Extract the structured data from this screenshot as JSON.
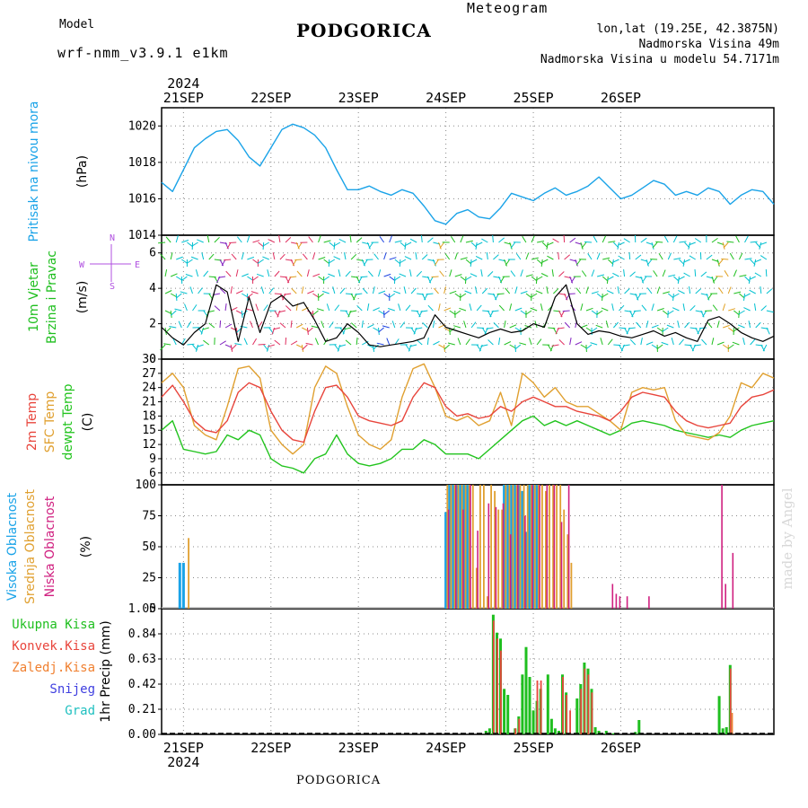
{
  "header": {
    "model_label": "Model",
    "model_name": "wrf-nmm_v3.9.1 e1km",
    "title": "PODGORICA",
    "subtitle": "Meteogram",
    "coords": "lon,lat (19.25E, 42.3875N)",
    "elevation": "Nadmorska Visina 49m",
    "model_elevation": "Nadmorska Visina u modelu 54.7171m",
    "footer": "PODGORICA",
    "watermark": "made by Angel"
  },
  "colors": {
    "pressure": "#1aa3e8",
    "temp2m": "#e8453c",
    "sfc": "#e0a030",
    "dewpt": "#22c41e",
    "green_label": "#1fbf1f",
    "purple": "#b050e0",
    "high_cloud": "#1aa3e8",
    "mid_cloud": "#e0a030",
    "low_cloud": "#d02080",
    "precip_total": "#1fbf1f",
    "precip_conv": "#e8453c",
    "precip_large": "#f08030",
    "snow": "#4040e0",
    "hail": "#20c0c0"
  },
  "axes": {
    "top_year": "2024",
    "bottom_year": "2024",
    "days": [
      "21SEP",
      "22SEP",
      "23SEP",
      "24SEP",
      "25SEP",
      "26SEP"
    ]
  },
  "chart_data": [
    {
      "type": "line",
      "panel": "pressure",
      "ylabel": [
        "Pritisak na nivou mora",
        "(hPa)"
      ],
      "ylim": [
        1014,
        1021
      ],
      "yticks": [
        1014,
        1016,
        1018,
        1020
      ],
      "x_unit": "hours from 21SEP 00UTC",
      "grid": true,
      "series": [
        {
          "x": [
            -6,
            -3,
            0,
            3,
            6,
            9,
            12,
            15,
            18,
            21,
            24,
            27,
            30,
            33,
            36,
            39,
            42,
            45,
            48,
            51,
            54,
            57,
            60,
            63,
            66,
            69,
            72,
            75,
            78,
            81,
            84,
            87,
            90,
            93,
            96,
            99,
            102,
            105,
            108,
            111,
            114,
            117,
            120,
            123,
            126,
            129,
            132,
            135,
            138,
            141,
            144,
            147,
            150,
            153,
            156,
            159,
            162
          ],
          "values": [
            1016.9,
            1016.4,
            1017.6,
            1018.8,
            1019.3,
            1019.7,
            1019.8,
            1019.2,
            1018.3,
            1017.8,
            1018.8,
            1019.8,
            1020.1,
            1019.9,
            1019.5,
            1018.8,
            1017.6,
            1016.5,
            1016.5,
            1016.7,
            1016.4,
            1016.2,
            1016.5,
            1016.3,
            1015.6,
            1014.8,
            1014.6,
            1015.2,
            1015.4,
            1015.0,
            1014.9,
            1015.5,
            1016.3,
            1016.1,
            1015.9,
            1016.3,
            1016.6,
            1016.2,
            1016.4,
            1016.7,
            1017.2,
            1016.6,
            1016.0,
            1016.2,
            1016.6,
            1017.0,
            1016.8,
            1016.2,
            1016.4,
            1016.2,
            1016.6,
            1016.4,
            1015.7,
            1016.2,
            1016.5,
            1016.4,
            1015.7
          ]
        }
      ]
    },
    {
      "type": "line",
      "panel": "wind",
      "ylabel": [
        "10m Vjetar",
        "Brzina i Pravac",
        "(m/s)"
      ],
      "compass": {
        "n": "N",
        "s": "S",
        "w": "W",
        "e": "E"
      },
      "ylim": [
        0,
        7
      ],
      "yticks": [
        0,
        2,
        4,
        6
      ],
      "grid": true,
      "series": [
        {
          "name": "speed",
          "x": [
            -6,
            -3,
            0,
            3,
            6,
            9,
            12,
            15,
            18,
            21,
            24,
            27,
            30,
            33,
            36,
            39,
            42,
            45,
            48,
            51,
            54,
            57,
            60,
            63,
            66,
            69,
            72,
            75,
            78,
            81,
            84,
            87,
            90,
            93,
            96,
            99,
            102,
            105,
            108,
            111,
            114,
            117,
            120,
            123,
            126,
            129,
            132,
            135,
            138,
            141,
            144,
            147,
            150,
            153,
            156,
            159,
            162
          ],
          "values": [
            1.8,
            1.2,
            0.8,
            1.5,
            2.0,
            4.2,
            3.8,
            1.0,
            3.5,
            1.5,
            3.2,
            3.6,
            3.0,
            3.2,
            2.2,
            1.0,
            1.2,
            2.0,
            1.5,
            0.8,
            0.7,
            0.8,
            0.9,
            1.0,
            1.2,
            2.5,
            1.8,
            1.6,
            1.4,
            1.2,
            1.5,
            1.7,
            1.5,
            1.6,
            2.0,
            1.8,
            3.5,
            4.2,
            2.0,
            1.4,
            1.6,
            1.5,
            1.3,
            1.2,
            1.4,
            1.6,
            1.3,
            1.5,
            1.2,
            1.0,
            2.2,
            2.4,
            2.0,
            1.5,
            1.2,
            1.0,
            1.3
          ]
        }
      ]
    },
    {
      "type": "line",
      "panel": "temperature",
      "ylabel": [
        "2m Temp",
        "SFC Temp",
        "dewpt Temp",
        "(C)"
      ],
      "ylim": [
        3.5,
        30
      ],
      "yticks": [
        6,
        9,
        12,
        15,
        18,
        21,
        24,
        27,
        30
      ],
      "grid": true,
      "series": [
        {
          "name": "2m Temp",
          "x": [
            -6,
            -3,
            0,
            3,
            6,
            9,
            12,
            15,
            18,
            21,
            24,
            27,
            30,
            33,
            36,
            39,
            42,
            45,
            48,
            51,
            54,
            57,
            60,
            63,
            66,
            69,
            72,
            75,
            78,
            81,
            84,
            87,
            90,
            93,
            96,
            99,
            102,
            105,
            108,
            111,
            114,
            117,
            120,
            123,
            126,
            129,
            132,
            135,
            138,
            141,
            144,
            147,
            150,
            153,
            156,
            159,
            162
          ],
          "values": [
            22,
            24.5,
            21,
            17,
            15,
            14.5,
            17,
            23,
            25,
            24,
            19,
            15,
            13,
            12.5,
            19,
            24,
            24.5,
            22,
            18,
            17,
            16.5,
            16,
            17,
            22,
            25,
            24,
            20,
            18,
            18.5,
            17.5,
            18,
            20,
            19,
            21,
            22,
            21,
            20,
            20,
            19,
            18.5,
            18,
            17,
            19,
            22,
            23,
            22.5,
            22,
            19,
            17,
            16,
            15.5,
            16,
            16.5,
            20,
            22,
            22.5,
            23.5
          ]
        },
        {
          "name": "SFC Temp",
          "x": [
            -6,
            -3,
            0,
            3,
            6,
            9,
            12,
            15,
            18,
            21,
            24,
            27,
            30,
            33,
            36,
            39,
            42,
            45,
            48,
            51,
            54,
            57,
            60,
            63,
            66,
            69,
            72,
            75,
            78,
            81,
            84,
            87,
            90,
            93,
            96,
            99,
            102,
            105,
            108,
            111,
            114,
            117,
            120,
            123,
            126,
            129,
            132,
            135,
            138,
            141,
            144,
            147,
            150,
            153,
            156,
            159,
            162
          ],
          "values": [
            25,
            27,
            24,
            16,
            14,
            13,
            20,
            28,
            28.5,
            26,
            15,
            12,
            10,
            12,
            24,
            28.5,
            27,
            20,
            14,
            12,
            11,
            13,
            22,
            28,
            29,
            24,
            18,
            17,
            18,
            16,
            17,
            23,
            16,
            27,
            25,
            22,
            24,
            21,
            20,
            20,
            18.5,
            17,
            15,
            23,
            24,
            23.5,
            24,
            17,
            14,
            13.5,
            13,
            14.5,
            18,
            25,
            24,
            27,
            26
          ]
        },
        {
          "name": "dewpt Temp",
          "x": [
            -6,
            -3,
            0,
            3,
            6,
            9,
            12,
            15,
            18,
            21,
            24,
            27,
            30,
            33,
            36,
            39,
            42,
            45,
            48,
            51,
            54,
            57,
            60,
            63,
            66,
            69,
            72,
            75,
            78,
            81,
            84,
            87,
            90,
            93,
            96,
            99,
            102,
            105,
            108,
            111,
            114,
            117,
            120,
            123,
            126,
            129,
            132,
            135,
            138,
            141,
            144,
            147,
            150,
            153,
            156,
            159,
            162
          ],
          "values": [
            15,
            17,
            11,
            10.5,
            10,
            10.5,
            14,
            13,
            15,
            14,
            9,
            7.5,
            7,
            6,
            9,
            10,
            14,
            10,
            8,
            7.5,
            8,
            9,
            11,
            11,
            13,
            12,
            10,
            10,
            10,
            9,
            11,
            13,
            15,
            17,
            18,
            16,
            17,
            16,
            17,
            16,
            15,
            14,
            15,
            16.5,
            17,
            16.5,
            16,
            15,
            14.5,
            14,
            13.5,
            14,
            13.5,
            15,
            16,
            16.5,
            17
          ]
        }
      ]
    },
    {
      "type": "bar",
      "panel": "clouds",
      "ylabel": [
        "Visoka Oblacnost",
        "Srednja Oblacnost",
        "Niska Oblacnost",
        "(%)"
      ],
      "ylim": [
        0,
        100
      ],
      "yticks": [
        0,
        25,
        50,
        75,
        100
      ],
      "grid": true,
      "series": [
        {
          "name": "Visoka Oblacnost",
          "x": [
            -1,
            0,
            72,
            73,
            74,
            75,
            76,
            77,
            78,
            88,
            89,
            90,
            91,
            92,
            93,
            94,
            95,
            96,
            97
          ],
          "values": [
            37,
            37,
            78,
            100,
            100,
            100,
            100,
            100,
            100,
            100,
            100,
            100,
            100,
            100,
            95,
            62,
            100,
            100,
            100
          ]
        },
        {
          "name": "Srednja Oblacnost",
          "x": [
            1,
            72,
            73,
            74,
            75,
            76,
            77,
            78,
            79,
            80,
            81,
            82,
            83,
            84,
            85,
            86,
            87,
            88,
            89,
            90,
            91,
            92,
            93,
            94,
            95,
            96,
            97,
            98,
            99,
            100,
            101,
            102,
            103,
            104,
            105,
            106
          ],
          "values": [
            57,
            100,
            100,
            100,
            100,
            100,
            100,
            100,
            100,
            33,
            100,
            100,
            10,
            100,
            95,
            80,
            80,
            100,
            100,
            100,
            100,
            100,
            100,
            100,
            100,
            100,
            100,
            100,
            95,
            100,
            100,
            100,
            100,
            80,
            60,
            37
          ]
        },
        {
          "name": "Niska Oblacnost",
          "x": [
            72,
            74,
            76,
            78,
            80,
            83,
            85,
            87,
            89,
            91,
            93,
            95,
            97,
            99,
            101,
            103,
            105,
            117,
            118,
            119,
            121,
            127,
            147,
            148,
            150
          ],
          "values": [
            80,
            100,
            80,
            100,
            63,
            85,
            82,
            85,
            60,
            100,
            75,
            100,
            100,
            100,
            100,
            70,
            100,
            20,
            12,
            10,
            10,
            10,
            100,
            20,
            45
          ]
        }
      ]
    },
    {
      "type": "bar",
      "panel": "precipitation",
      "ylabel": [
        "1hr Precip (mm)"
      ],
      "legend": [
        "Ukupna Kisa",
        "Konvek.Kisa",
        "Zaledj.Kisa",
        "Snijeg",
        "Grad"
      ],
      "ylim": [
        0,
        1.05
      ],
      "yticks": [
        0,
        0.21,
        0.42,
        0.63,
        0.84,
        1.05
      ],
      "grid": true,
      "series": [
        {
          "name": "Ukupna Kisa",
          "x": [
            83,
            84,
            85,
            86,
            87,
            88,
            89,
            91,
            92,
            93,
            94,
            95,
            96,
            97,
            98,
            100,
            101,
            102,
            103,
            104,
            105,
            108,
            109,
            110,
            111,
            112,
            113,
            114,
            116,
            118,
            124,
            125,
            147,
            148,
            149,
            150
          ],
          "values": [
            0.03,
            0.05,
            1.0,
            0.85,
            0.8,
            0.38,
            0.33,
            0.05,
            0.15,
            0.5,
            0.73,
            0.48,
            0.2,
            0.28,
            0.38,
            0.5,
            0.13,
            0.05,
            0.03,
            0.5,
            0.35,
            0.3,
            0.42,
            0.6,
            0.55,
            0.38,
            0.06,
            0.03,
            0.03,
            0.01,
            0.02,
            0.12,
            0.32,
            0.05,
            0.06,
            0.58
          ]
        },
        {
          "name": "Konvek.Kisa",
          "x": [
            85,
            86,
            87,
            91,
            92,
            97,
            98,
            104,
            105,
            106,
            109,
            110,
            111,
            112,
            150
          ],
          "values": [
            0.95,
            0.8,
            0.7,
            0.05,
            0.13,
            0.45,
            0.45,
            0.48,
            0.33,
            0.2,
            0.38,
            0.55,
            0.5,
            0.35,
            0.55
          ]
        },
        {
          "name": "Zaledj.Kisa",
          "x": [
            150
          ],
          "values": [
            0.18
          ]
        }
      ]
    }
  ]
}
